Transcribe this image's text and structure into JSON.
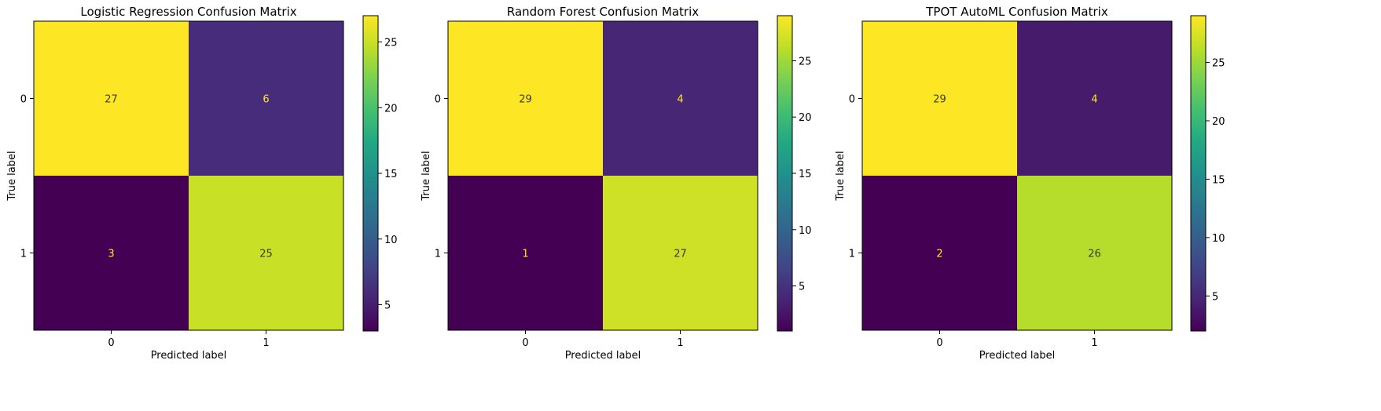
{
  "chart_data": [
    {
      "type": "heatmap",
      "title": "Logistic Regression Confusion Matrix",
      "xlabel": "Predicted label",
      "ylabel": "True label",
      "x_categories": [
        "0",
        "1"
      ],
      "y_categories": [
        "0",
        "1"
      ],
      "values": [
        [
          27,
          6
        ],
        [
          3,
          25
        ]
      ],
      "colormap": "viridis",
      "colorbar": {
        "range": [
          3,
          27
        ],
        "ticks": [
          5,
          10,
          15,
          20,
          25
        ]
      }
    },
    {
      "type": "heatmap",
      "title": "Random Forest Confusion Matrix",
      "xlabel": "Predicted label",
      "ylabel": "True label",
      "x_categories": [
        "0",
        "1"
      ],
      "y_categories": [
        "0",
        "1"
      ],
      "values": [
        [
          29,
          4
        ],
        [
          1,
          27
        ]
      ],
      "colormap": "viridis",
      "colorbar": {
        "range": [
          1,
          29
        ],
        "ticks": [
          5,
          10,
          15,
          20,
          25
        ]
      }
    },
    {
      "type": "heatmap",
      "title": "TPOT AutoML Confusion Matrix",
      "xlabel": "Predicted label",
      "ylabel": "True label",
      "x_categories": [
        "0",
        "1"
      ],
      "y_categories": [
        "0",
        "1"
      ],
      "values": [
        [
          29,
          4
        ],
        [
          2,
          26
        ]
      ],
      "colormap": "viridis",
      "colorbar": {
        "range": [
          2,
          29
        ],
        "ticks": [
          5,
          10,
          15,
          20,
          25
        ]
      }
    }
  ]
}
